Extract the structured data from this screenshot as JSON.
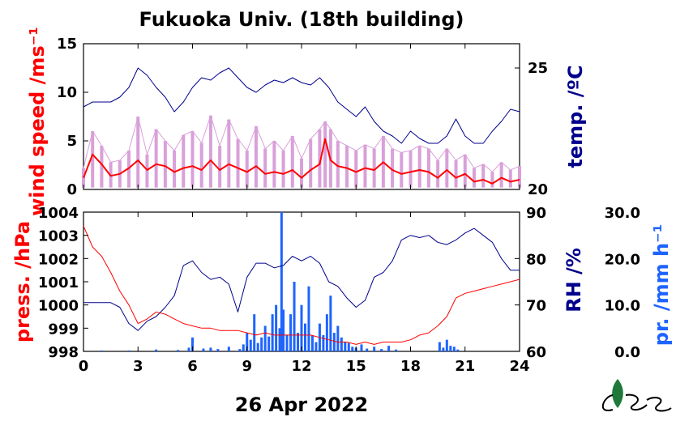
{
  "title": "Fukuoka Univ. (18th building)",
  "date_label": "26 Apr 2022",
  "colors": {
    "wind": "#ff0000",
    "wind_raw": "#d9a0d9",
    "temp": "#00008b",
    "press": "#ff0000",
    "rh": "#00008b",
    "precip": "#1e64ff",
    "logo_green": "#1f7a3a"
  },
  "logo_icon": "university-logo",
  "chart_data": [
    {
      "type": "line",
      "panel": "top",
      "xlim": [
        0,
        24
      ],
      "xticks": [
        "0",
        "3",
        "6",
        "9",
        "12",
        "15",
        "18",
        "21",
        "24"
      ],
      "left_axis": {
        "label": "wind speed /ms⁻¹",
        "ylim": [
          0,
          15
        ],
        "ticks": [
          "0",
          "5",
          "10",
          "15"
        ]
      },
      "right_axis": {
        "label": "temp. /ºC",
        "ylim": [
          20,
          26
        ],
        "ticks": [
          "20",
          "25"
        ]
      },
      "series": [
        {
          "axis": "left",
          "style": "mean",
          "x": [
            0,
            0.5,
            1,
            1.5,
            2,
            2.5,
            3,
            3.5,
            4,
            4.5,
            5,
            5.5,
            6,
            6.5,
            7,
            7.5,
            8,
            8.5,
            9,
            9.5,
            10,
            10.5,
            11,
            11.5,
            12,
            12.5,
            13,
            13.3,
            13.6,
            14,
            14.5,
            15,
            15.5,
            16,
            16.5,
            17,
            17.5,
            18,
            18.5,
            19,
            19.5,
            20,
            20.5,
            21,
            21.5,
            22,
            22.5,
            23,
            23.5,
            24
          ],
          "values": [
            1.2,
            3.6,
            2.6,
            1.4,
            1.6,
            2.2,
            3.0,
            2.0,
            2.6,
            2.4,
            1.8,
            2.2,
            2.4,
            2.0,
            3.0,
            2.0,
            2.6,
            2.2,
            1.8,
            2.4,
            1.6,
            1.8,
            1.6,
            2.0,
            1.2,
            2.0,
            2.6,
            5.2,
            3.0,
            2.4,
            2.2,
            1.8,
            2.2,
            2.0,
            2.8,
            2.0,
            1.6,
            1.8,
            2.0,
            1.8,
            1.2,
            2.0,
            1.2,
            1.6,
            0.8,
            1.0,
            0.6,
            1.2,
            0.8,
            1.0
          ]
        },
        {
          "axis": "left",
          "style": "raw",
          "x": [
            0,
            0.5,
            1,
            1.5,
            2,
            2.5,
            3,
            3.5,
            4,
            4.5,
            5,
            5.5,
            6,
            6.5,
            7,
            7.5,
            8,
            8.5,
            9,
            9.5,
            10,
            10.5,
            11,
            11.5,
            12,
            12.5,
            13,
            13.3,
            13.6,
            14,
            14.5,
            15,
            15.5,
            16,
            16.5,
            17,
            17.5,
            18,
            18.5,
            19,
            19.5,
            20,
            20.5,
            21,
            21.5,
            22,
            22.5,
            23,
            23.5,
            24
          ],
          "values": [
            2.2,
            6.0,
            4.5,
            2.8,
            3.0,
            4.0,
            7.5,
            3.6,
            6.2,
            5.0,
            4.0,
            5.6,
            6.0,
            4.8,
            7.6,
            4.5,
            7.2,
            5.2,
            4.0,
            6.5,
            4.2,
            5.0,
            4.0,
            5.5,
            3.2,
            5.2,
            6.2,
            7.0,
            6.2,
            5.0,
            4.5,
            4.0,
            4.6,
            4.2,
            5.5,
            4.2,
            3.8,
            4.0,
            4.5,
            4.2,
            3.0,
            4.2,
            3.0,
            3.6,
            2.2,
            2.6,
            1.8,
            2.8,
            2.0,
            2.4
          ]
        },
        {
          "axis": "right",
          "style": "temp",
          "x": [
            0,
            0.5,
            1,
            1.5,
            2,
            2.5,
            3,
            3.5,
            4,
            4.5,
            5,
            5.5,
            6,
            6.5,
            7,
            7.5,
            8,
            8.5,
            9,
            9.5,
            10,
            10.5,
            11,
            11.5,
            12,
            12.5,
            13,
            13.5,
            14,
            14.5,
            15,
            15.5,
            16,
            16.5,
            17,
            17.5,
            18,
            18.5,
            19,
            19.5,
            20,
            20.5,
            21,
            21.5,
            22,
            22.5,
            23,
            23.5,
            24
          ],
          "values": [
            23.4,
            23.6,
            23.6,
            23.6,
            23.8,
            24.2,
            25.0,
            24.7,
            24.2,
            23.8,
            23.2,
            23.6,
            24.2,
            24.6,
            24.5,
            24.8,
            25.0,
            24.6,
            24.2,
            24.0,
            24.3,
            24.5,
            24.4,
            24.6,
            24.4,
            24.3,
            24.6,
            24.2,
            23.6,
            23.3,
            23.0,
            23.4,
            22.8,
            22.4,
            22.2,
            21.9,
            22.4,
            22.1,
            21.9,
            21.9,
            22.2,
            22.9,
            22.2,
            21.9,
            21.9,
            22.4,
            22.8,
            23.3,
            23.2
          ]
        }
      ]
    },
    {
      "type": "line",
      "panel": "bottom",
      "xlim": [
        0,
        24
      ],
      "xticks": [
        "0",
        "3",
        "6",
        "9",
        "12",
        "15",
        "18",
        "21",
        "24"
      ],
      "left_axis": {
        "label": "press. /hPa",
        "ylim": [
          998,
          1004
        ],
        "ticks": [
          "998",
          "999",
          "1000",
          "1001",
          "1002",
          "1003",
          "1004"
        ]
      },
      "right_axis": {
        "label": "RH /%",
        "ylim": [
          60,
          90
        ],
        "ticks": [
          "60",
          "70",
          "80",
          "90"
        ]
      },
      "far_right_axis": {
        "label": "pr. /mm h⁻¹",
        "ylim": [
          0,
          30
        ],
        "ticks": [
          "0.0",
          "10.0",
          "20.0",
          "30.0"
        ]
      },
      "series": [
        {
          "axis": "left",
          "style": "press",
          "x": [
            0,
            0.5,
            1,
            1.5,
            2,
            2.5,
            3,
            3.5,
            4,
            4.5,
            5,
            5.5,
            6,
            6.5,
            7,
            7.5,
            8,
            8.5,
            9,
            9.5,
            10,
            10.5,
            11,
            11.5,
            12,
            12.5,
            13,
            13.5,
            14,
            14.5,
            15,
            15.5,
            16,
            16.5,
            17,
            17.5,
            18,
            18.5,
            19,
            19.5,
            20,
            20.5,
            21,
            21.5,
            22,
            22.5,
            23,
            23.5,
            24
          ],
          "values": [
            1003.4,
            1002.5,
            1002.1,
            1001.4,
            1000.6,
            1000.0,
            999.2,
            999.4,
            999.7,
            999.6,
            999.4,
            999.2,
            999.1,
            999.0,
            999.0,
            998.9,
            998.9,
            998.9,
            998.8,
            998.7,
            998.8,
            998.7,
            998.7,
            998.7,
            998.7,
            998.7,
            998.6,
            998.5,
            998.4,
            998.4,
            998.3,
            998.4,
            998.3,
            998.4,
            998.4,
            998.4,
            998.5,
            998.7,
            998.8,
            999.1,
            999.5,
            1000.3,
            1000.5,
            1000.6,
            1000.7,
            1000.8,
            1000.9,
            1001.0,
            1001.1
          ]
        },
        {
          "axis": "right",
          "style": "rh",
          "x": [
            0,
            0.5,
            1,
            1.5,
            2,
            2.5,
            3,
            3.5,
            4,
            4.5,
            5,
            5.5,
            6,
            6.5,
            7,
            7.5,
            8,
            8.5,
            9,
            9.5,
            10,
            10.5,
            11,
            11.5,
            12,
            12.5,
            13,
            13.5,
            14,
            14.5,
            15,
            15.5,
            16,
            16.5,
            17,
            17.5,
            18,
            18.5,
            19,
            19.5,
            20,
            20.5,
            21,
            21.5,
            22,
            22.5,
            23,
            23.5,
            24
          ],
          "values": [
            70.5,
            70.5,
            70.5,
            70.5,
            69.5,
            66.0,
            64.5,
            66.5,
            67.5,
            69.5,
            72.0,
            78.5,
            79.5,
            77.0,
            75.5,
            76.0,
            74.5,
            68.5,
            76.0,
            79.0,
            79.0,
            78.0,
            78.5,
            80.5,
            79.5,
            80.5,
            79.0,
            75.0,
            74.0,
            71.5,
            69.5,
            71.0,
            76.0,
            77.0,
            79.5,
            84.0,
            85.0,
            84.5,
            85.0,
            83.5,
            83.0,
            84.0,
            85.5,
            86.5,
            85.0,
            83.5,
            80.0,
            77.5,
            77.5
          ]
        },
        {
          "axis": "far_right",
          "style": "precip",
          "x": [
            1.0,
            2.5,
            4.0,
            5.2,
            5.8,
            6.0,
            6.6,
            7.0,
            7.4,
            8.0,
            8.6,
            8.8,
            9.0,
            9.2,
            9.4,
            9.6,
            9.8,
            10.0,
            10.2,
            10.4,
            10.6,
            10.8,
            10.9,
            11.0,
            11.2,
            11.4,
            11.6,
            11.8,
            12.0,
            12.2,
            12.4,
            12.6,
            12.8,
            13.0,
            13.2,
            13.4,
            13.6,
            13.8,
            14.0,
            14.2,
            14.4,
            14.6,
            14.8,
            15.0,
            15.3,
            15.6,
            16.0,
            16.4,
            16.8,
            17.2,
            19.6,
            19.8,
            20.0,
            20.2,
            20.4,
            20.6
          ],
          "values": [
            0.2,
            0.2,
            0.4,
            0.3,
            0.8,
            3.0,
            0.6,
            0.8,
            0.5,
            1.0,
            0.5,
            1.5,
            4.0,
            2.5,
            8.0,
            1.8,
            3.0,
            5.5,
            3.2,
            8.0,
            10.0,
            5.0,
            31.0,
            9.0,
            3.5,
            8.0,
            15.0,
            4.0,
            10.0,
            6.0,
            14.0,
            3.5,
            2.0,
            6.0,
            3.5,
            8.0,
            12.0,
            4.0,
            5.5,
            3.0,
            2.0,
            1.8,
            1.0,
            0.8,
            1.5,
            0.6,
            1.0,
            0.5,
            1.2,
            0.4,
            2.0,
            0.8,
            2.5,
            1.2,
            1.0,
            0.4
          ]
        }
      ]
    }
  ]
}
